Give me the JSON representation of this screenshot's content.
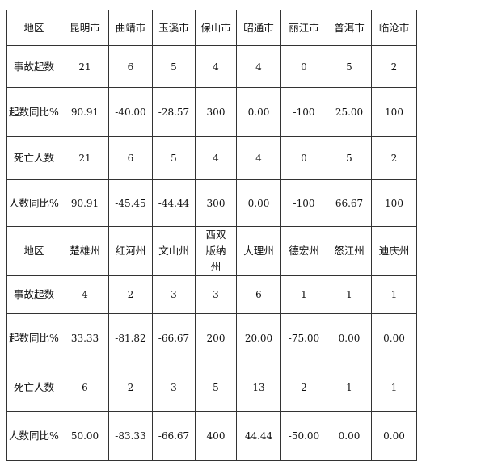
{
  "table1": {
    "header": [
      "地区",
      "昆明市",
      "曲靖市",
      "玉溪市",
      "保山市",
      "昭通市",
      "丽江市",
      "普洱市",
      "临沧市"
    ],
    "rows": [
      [
        "事故起数",
        "21",
        "6",
        "5",
        "4",
        "4",
        "0",
        "5",
        "2"
      ],
      [
        "起数同比%",
        "90.91",
        "-40.00",
        "-28.57",
        "300",
        "0.00",
        "-100",
        "25.00",
        "100"
      ],
      [
        "死亡人数",
        "21",
        "6",
        "5",
        "4",
        "4",
        "0",
        "5",
        "2"
      ],
      [
        "人数同比%",
        "90.91",
        "-45.45",
        "-44.44",
        "300",
        "0.00",
        "-100",
        "66.67",
        "100"
      ]
    ]
  },
  "table2": {
    "header": [
      "地区",
      "楚雄州",
      "红河州",
      "文山州",
      "西双版纳州",
      "大理州",
      "德宏州",
      "怒江州",
      "迪庆州"
    ],
    "rows": [
      [
        "事故起数",
        "4",
        "2",
        "3",
        "3",
        "6",
        "1",
        "1",
        "1"
      ],
      [
        "起数同比%",
        "33.33",
        "-81.82",
        "-66.67",
        "200",
        "20.00",
        "-75.00",
        "0.00",
        "0.00"
      ],
      [
        "死亡人数",
        "6",
        "2",
        "3",
        "5",
        "13",
        "2",
        "1",
        "1"
      ],
      [
        "人数同比%",
        "50.00",
        "-83.33",
        "-66.67",
        "400",
        "44.44",
        "-50.00",
        "0.00",
        "0.00"
      ]
    ]
  }
}
